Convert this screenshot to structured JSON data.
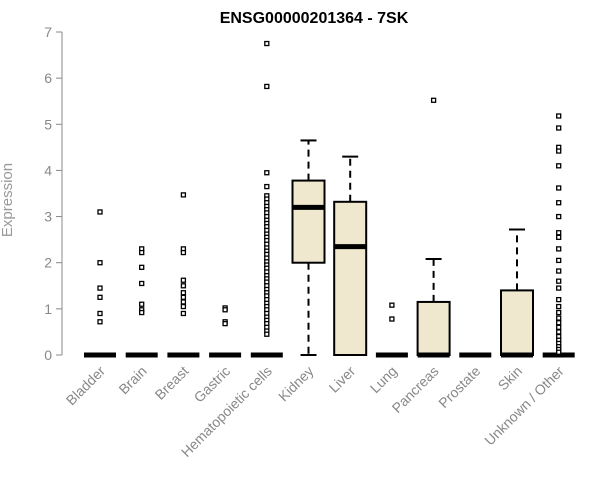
{
  "chart_data": {
    "type": "box",
    "title": "ENSG00000201364 - 7SK",
    "xlabel": "",
    "ylabel": "Expression",
    "ylim": [
      0,
      7
    ],
    "yticks": [
      0,
      1,
      2,
      3,
      4,
      5,
      6,
      7
    ],
    "grid": false,
    "box_fill": "#efe8cf",
    "axis_color": "#888888",
    "categories": [
      "Bladder",
      "Brain",
      "Breast",
      "Gastric",
      "Hematopoietic cells",
      "Kidney",
      "Liver",
      "Lung",
      "Pancreas",
      "Prostate",
      "Skin",
      "Unknown / Other"
    ],
    "boxes": [
      {
        "category": "Bladder",
        "q1": 0,
        "median": 0,
        "q3": 0,
        "whisker_low": 0,
        "whisker_high": 0,
        "outliers": [
          3.1,
          2.0,
          1.45,
          1.25,
          0.9,
          0.72
        ]
      },
      {
        "category": "Brain",
        "q1": 0,
        "median": 0,
        "q3": 0,
        "whisker_low": 0,
        "whisker_high": 0,
        "outliers": [
          2.3,
          2.22,
          1.9,
          1.55,
          1.1,
          0.98,
          0.92
        ]
      },
      {
        "category": "Breast",
        "q1": 0,
        "median": 0,
        "q3": 0,
        "whisker_low": 0,
        "whisker_high": 0,
        "outliers": [
          3.47,
          2.3,
          2.22,
          1.62,
          1.5,
          1.35,
          1.25,
          1.15,
          1.05,
          0.9
        ]
      },
      {
        "category": "Gastric",
        "q1": 0,
        "median": 0,
        "q3": 0,
        "whisker_low": 0,
        "whisker_high": 0,
        "outliers": [
          1.02,
          0.98,
          0.72,
          0.68
        ]
      },
      {
        "category": "Hematopoietic cells",
        "q1": 0,
        "median": 0,
        "q3": 0,
        "whisker_low": 0,
        "whisker_high": 0,
        "outliers": [
          6.75,
          5.82,
          3.95,
          3.65,
          3.45,
          3.38,
          3.3,
          3.22,
          3.15,
          3.08,
          3.0,
          2.92,
          2.85,
          2.78,
          2.7,
          2.62,
          2.55,
          2.48,
          2.4,
          2.32,
          2.25,
          2.18,
          2.1,
          2.02,
          1.95,
          1.88,
          1.8,
          1.72,
          1.65,
          1.58,
          1.5,
          1.42,
          1.35,
          1.28,
          1.2,
          1.12,
          1.05,
          0.98,
          0.9,
          0.82,
          0.75,
          0.68,
          0.6,
          0.52,
          0.45
        ]
      },
      {
        "category": "Kidney",
        "q1": 2.0,
        "median": 3.2,
        "q3": 3.78,
        "whisker_low": 0,
        "whisker_high": 4.65,
        "outliers": []
      },
      {
        "category": "Liver",
        "q1": 0,
        "median": 2.35,
        "q3": 3.32,
        "whisker_low": 0,
        "whisker_high": 4.3,
        "outliers": []
      },
      {
        "category": "Lung",
        "q1": 0,
        "median": 0,
        "q3": 0,
        "whisker_low": 0,
        "whisker_high": 0,
        "outliers": [
          1.08,
          0.78
        ]
      },
      {
        "category": "Pancreas",
        "q1": 0,
        "median": 0,
        "q3": 1.15,
        "whisker_low": 0,
        "whisker_high": 2.08,
        "outliers": [
          5.52
        ]
      },
      {
        "category": "Prostate",
        "q1": 0,
        "median": 0,
        "q3": 0,
        "whisker_low": 0,
        "whisker_high": 0,
        "outliers": []
      },
      {
        "category": "Skin",
        "q1": 0,
        "median": 0,
        "q3": 1.4,
        "whisker_low": 0,
        "whisker_high": 2.72,
        "outliers": []
      },
      {
        "category": "Unknown / Other",
        "q1": 0,
        "median": 0,
        "q3": 0,
        "whisker_low": 0,
        "whisker_high": 0,
        "outliers": [
          5.18,
          4.92,
          4.5,
          4.42,
          4.1,
          3.62,
          3.3,
          3.0,
          2.65,
          2.55,
          2.3,
          2.05,
          1.82,
          1.6,
          1.45,
          1.2,
          1.05,
          0.92,
          0.8,
          0.7,
          0.6,
          0.5,
          0.4,
          0.32,
          0.25,
          0.18,
          0.12,
          0.06
        ]
      }
    ]
  }
}
